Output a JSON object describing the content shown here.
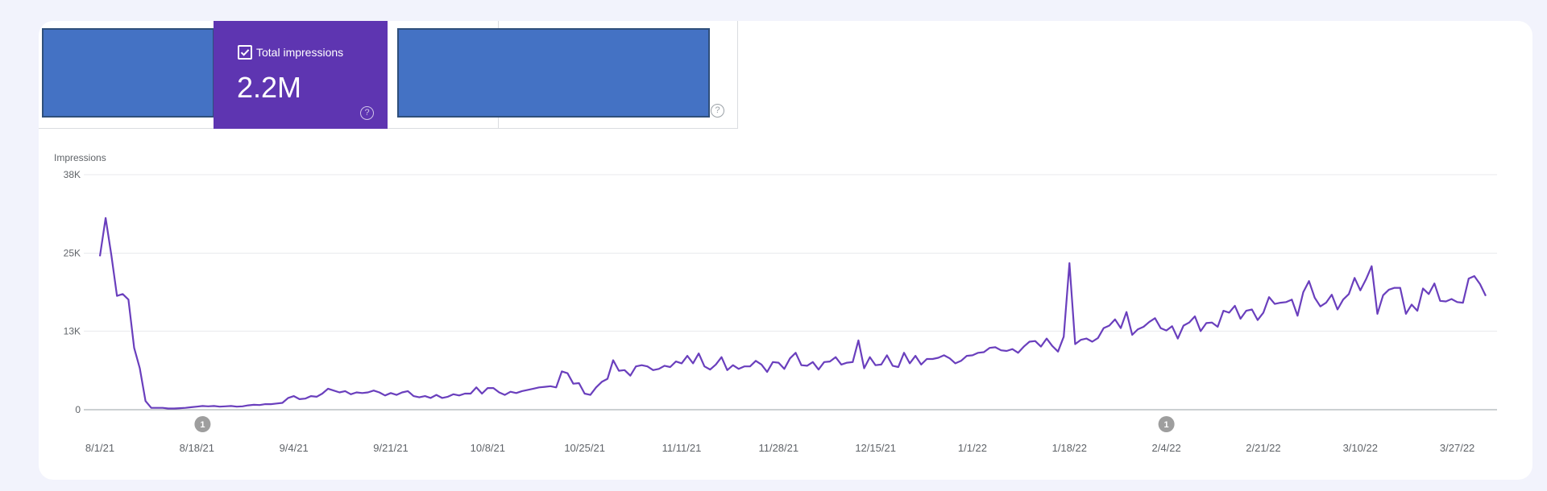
{
  "metrics": {
    "active_label": "Total impressions",
    "active_value": "2.2M",
    "help_glyph": "?"
  },
  "colors": {
    "line": "#6a3fbd",
    "metric_active_bg": "#5e35b1",
    "redaction": "#4472c4",
    "grid": "#e8eaed",
    "axis_text": "#5f6368",
    "annotation": "#9e9e9e"
  },
  "chart_data": {
    "type": "line",
    "ylabel": "Impressions",
    "y_ticks": [
      "0",
      "13K",
      "25K",
      "38K"
    ],
    "y_tick_values": [
      0,
      12700,
      25300,
      38000
    ],
    "ylim": [
      0,
      38000
    ],
    "x_tick_labels": [
      "8/1/21",
      "8/18/21",
      "9/4/21",
      "9/21/21",
      "10/8/21",
      "10/25/21",
      "11/11/21",
      "11/28/21",
      "12/15/21",
      "1/1/22",
      "1/18/22",
      "2/4/22",
      "2/21/22",
      "3/10/22",
      "3/27/22"
    ],
    "annotations": [
      {
        "label": "1",
        "date": "8/19/21"
      },
      {
        "label": "1",
        "date": "2/4/22"
      }
    ],
    "series": [
      {
        "name": "Impressions",
        "start_date": "2021-08-01",
        "values": [
          24800,
          31000,
          25000,
          18400,
          18700,
          17800,
          10000,
          6700,
          1400,
          300,
          300,
          300,
          200,
          200,
          250,
          300,
          400,
          500,
          600,
          550,
          600,
          500,
          550,
          600,
          500,
          550,
          700,
          800,
          750,
          900,
          900,
          1000,
          1100,
          1900,
          2200,
          1700,
          1800,
          2200,
          2100,
          2600,
          3400,
          3100,
          2800,
          3000,
          2500,
          2800,
          2700,
          2800,
          3100,
          2800,
          2300,
          2700,
          2400,
          2800,
          3000,
          2200,
          2000,
          2200,
          1900,
          2400,
          1900,
          2100,
          2500,
          2300,
          2600,
          2600,
          3600,
          2600,
          3500,
          3500,
          2800,
          2400,
          2900,
          2700,
          3000,
          3200,
          3400,
          3600,
          3700,
          3800,
          3600,
          6200,
          5900,
          4200,
          4300,
          2600,
          2400,
          3600,
          4500,
          5000,
          8000,
          6300,
          6400,
          5500,
          7000,
          7200,
          7000,
          6400,
          6600,
          7100,
          6900,
          7800,
          7500,
          8700,
          7500,
          9100,
          7000,
          6500,
          7300,
          8500,
          6400,
          7200,
          6600,
          7000,
          7000,
          7900,
          7300,
          6100,
          7700,
          7600,
          6600,
          8300,
          9200,
          7200,
          7100,
          7700,
          6500,
          7700,
          7800,
          8500,
          7300,
          7600,
          7700,
          11200,
          6700,
          8500,
          7200,
          7300,
          8800,
          7100,
          6900,
          9200,
          7500,
          8700,
          7300,
          8200,
          8200,
          8400,
          8800,
          8300,
          7500,
          7900,
          8700,
          8800,
          9200,
          9300,
          10000,
          10100,
          9600,
          9500,
          9800,
          9200,
          10200,
          11000,
          11100,
          10200,
          11500,
          10300,
          9400,
          11800,
          23700,
          10600,
          11300,
          11500,
          11000,
          11600,
          13200,
          13600,
          14600,
          13200,
          15800,
          12100,
          13000,
          13400,
          14200,
          14800,
          13200,
          12800,
          13500,
          11500,
          13600,
          14100,
          15100,
          12700,
          14000,
          14100,
          13400,
          16000,
          15700,
          16800,
          14700,
          16000,
          16200,
          14500,
          15700,
          18200,
          17100,
          17300,
          17400,
          17800,
          15200,
          19000,
          20800,
          18100,
          16700,
          17300,
          18600,
          16200,
          17800,
          18700,
          21300,
          19300,
          21100,
          23200,
          15500,
          18500,
          19400,
          19700,
          19700,
          15500,
          17000,
          16000,
          19600,
          18700,
          20400,
          17600,
          17500,
          17900,
          17400,
          17300,
          21200,
          21600,
          20300,
          18400
        ]
      }
    ]
  }
}
